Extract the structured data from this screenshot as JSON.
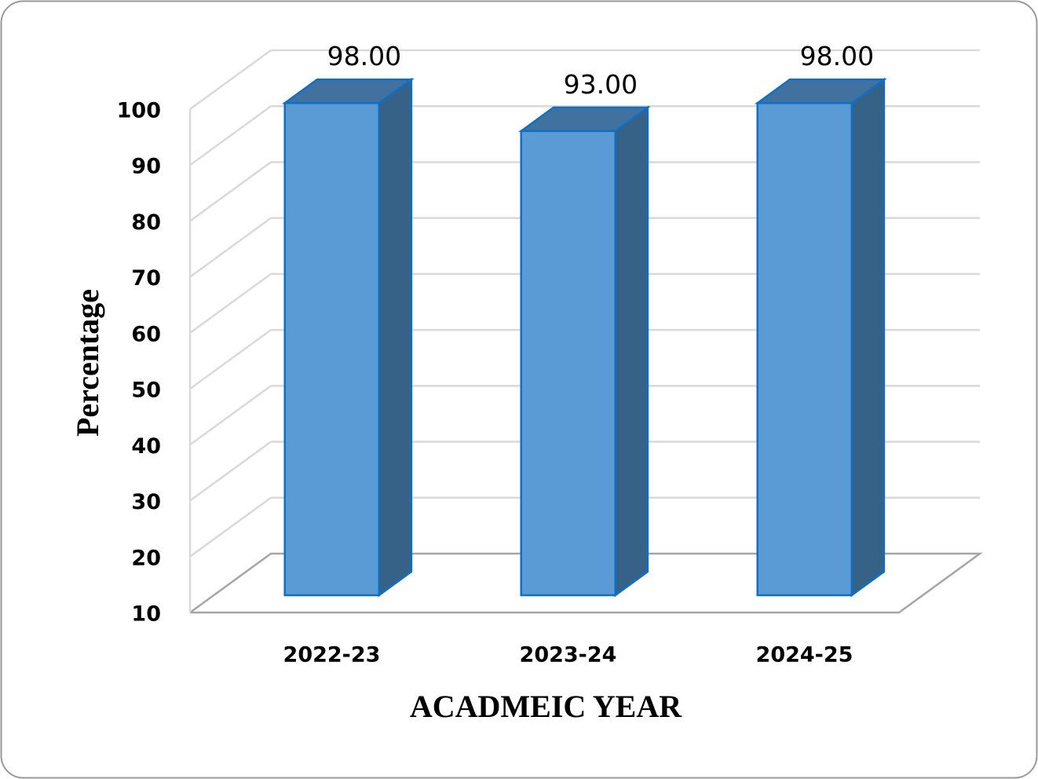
{
  "chart_data": {
    "type": "bar3d",
    "y_label": "Percentage",
    "x_label": "ACADMEIC YEAR",
    "categories": [
      "2022-23",
      "2023-24",
      "2024-25"
    ],
    "values": [
      98,
      93,
      98
    ],
    "value_labels": [
      "98.00",
      "93.00",
      "98.00"
    ],
    "color": "#5b9bd5",
    "ylim": [
      10,
      100
    ],
    "yticks": [
      10,
      20,
      30,
      40,
      50,
      60,
      70,
      80,
      90,
      100
    ],
    "grid": true
  }
}
